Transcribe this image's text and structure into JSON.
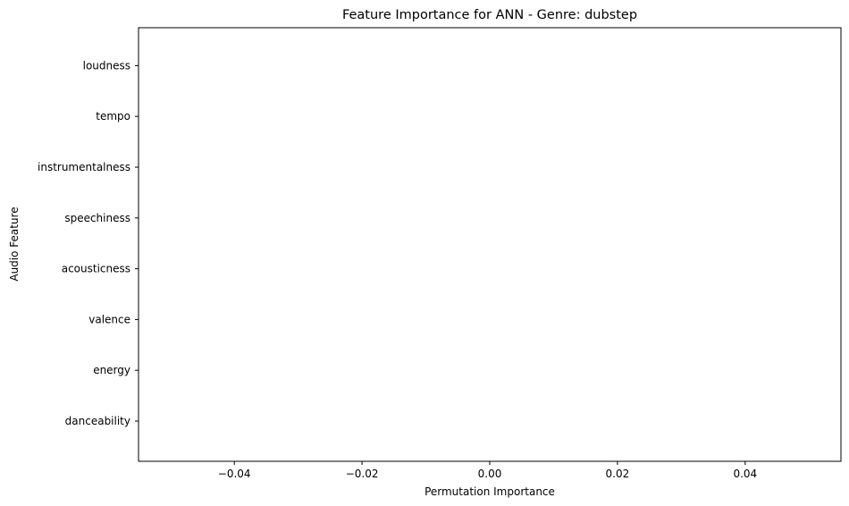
{
  "chart_data": {
    "type": "bar",
    "orientation": "horizontal",
    "title": "Feature Importance for ANN - Genre: dubstep",
    "xlabel": "Permutation Importance",
    "ylabel": "Audio Feature",
    "categories": [
      "danceability",
      "energy",
      "valence",
      "acousticness",
      "speechiness",
      "instrumentalness",
      "tempo",
      "loudness"
    ],
    "values": [
      0,
      0,
      0,
      0,
      0,
      0,
      0,
      0
    ],
    "xlim": [
      -0.055,
      0.055
    ],
    "xticks": [
      -0.04,
      -0.02,
      0.0,
      0.02,
      0.04
    ],
    "xtick_labels": [
      "−0.04",
      "−0.02",
      "0.00",
      "0.02",
      "0.04"
    ],
    "grid": false,
    "bar_color": "#1f77b4"
  }
}
